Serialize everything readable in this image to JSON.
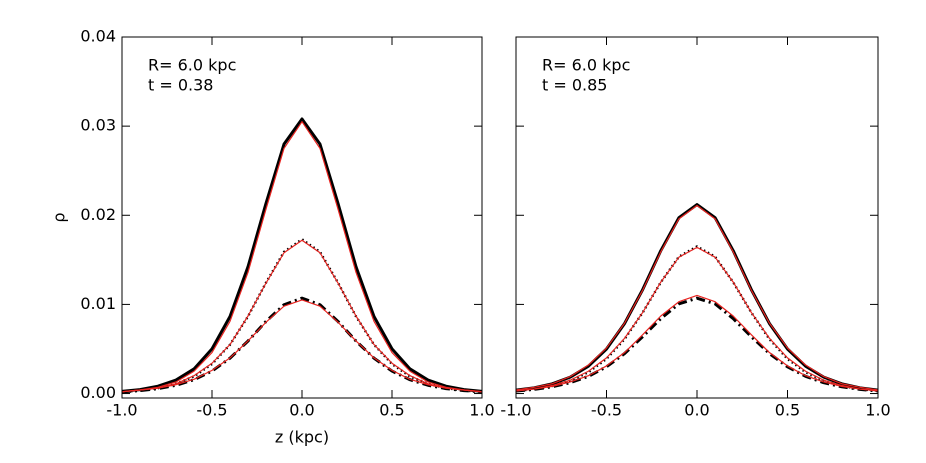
{
  "chart_data": [
    {
      "type": "line",
      "annotations": [
        "R= 6.0 kpc",
        "t = 0.38"
      ],
      "xlabel": "z (kpc)",
      "ylabel": "ρ",
      "x": [
        -1.0,
        -0.9,
        -0.8,
        -0.7,
        -0.6,
        -0.5,
        -0.4,
        -0.3,
        -0.2,
        -0.1,
        0.0,
        0.1,
        0.2,
        0.3,
        0.4,
        0.5,
        0.6,
        0.7,
        0.8,
        0.9,
        1.0
      ],
      "xlim": [
        -1,
        1
      ],
      "xticks": [
        {
          "value": -1,
          "label": "-1.0"
        },
        -0.5,
        {
          "value": 0,
          "label": "0.0"
        },
        0.5,
        {
          "value": 1,
          "label": "1.0"
        }
      ],
      "ylim": [
        -0.0005,
        0.04
      ],
      "yticks": [
        {
          "value": 0,
          "label": "0.00"
        },
        0.01,
        0.02,
        0.03,
        0.04
      ],
      "ytick_labels": true,
      "series": [
        {
          "color": "#000000",
          "style": "solid",
          "values": [
            0.00024,
            0.00044,
            0.00082,
            0.00151,
            0.00276,
            0.00501,
            0.00864,
            0.01422,
            0.02133,
            0.02798,
            0.0308,
            0.02798,
            0.02133,
            0.01422,
            0.00864,
            0.00501,
            0.00276,
            0.00151,
            0.00082,
            0.00044,
            0.00024
          ]
        },
        {
          "color": "#000000",
          "style": "dotted",
          "values": [
            0.00019,
            0.00034,
            0.00061,
            0.00109,
            0.00192,
            0.00331,
            0.00549,
            0.00865,
            0.01244,
            0.01589,
            0.0173,
            0.01589,
            0.01244,
            0.00865,
            0.00549,
            0.00331,
            0.00192,
            0.00109,
            0.00061,
            0.00034,
            0.00019
          ]
        },
        {
          "color": "#000000",
          "style": "dashdot",
          "values": [
            0.00019,
            0.00033,
            0.00055,
            0.00093,
            0.00155,
            0.00252,
            0.00397,
            0.00589,
            0.00809,
            0.00996,
            0.0107,
            0.00996,
            0.00809,
            0.00589,
            0.00397,
            0.00252,
            0.00155,
            0.00093,
            0.00055,
            0.00033,
            0.00019
          ]
        },
        {
          "color": "#e8231f",
          "style": "thin",
          "values": [
            0.0002,
            0.0004,
            0.0007,
            0.0013,
            0.0025,
            0.0046,
            0.0081,
            0.0136,
            0.0207,
            0.0275,
            0.0305,
            0.0275,
            0.0207,
            0.0136,
            0.0081,
            0.0046,
            0.0025,
            0.0013,
            0.0007,
            0.0004,
            0.0002
          ]
        },
        {
          "color": "#e8231f",
          "style": "thin",
          "values": [
            0.0002,
            0.0004,
            0.0006,
            0.0011,
            0.002,
            0.0034,
            0.0055,
            0.0087,
            0.0124,
            0.0158,
            0.0172,
            0.0158,
            0.0124,
            0.0087,
            0.0055,
            0.0034,
            0.002,
            0.0011,
            0.0006,
            0.0004,
            0.0002
          ]
        },
        {
          "color": "#e8231f",
          "style": "thin",
          "values": [
            0.0002,
            0.0004,
            0.0006,
            0.001,
            0.0016,
            0.0026,
            0.004,
            0.0059,
            0.008,
            0.0098,
            0.0105,
            0.0098,
            0.008,
            0.0059,
            0.004,
            0.0026,
            0.0016,
            0.001,
            0.0006,
            0.0004,
            0.0002
          ]
        }
      ]
    },
    {
      "type": "line",
      "annotations": [
        "R= 6.0 kpc",
        "t = 0.85"
      ],
      "x": [
        -1.0,
        -0.9,
        -0.8,
        -0.7,
        -0.6,
        -0.5,
        -0.4,
        -0.3,
        -0.2,
        -0.1,
        0.0,
        0.1,
        0.2,
        0.3,
        0.4,
        0.5,
        0.6,
        0.7,
        0.8,
        0.9,
        1.0
      ],
      "xlim": [
        -1,
        1
      ],
      "xticks": [
        {
          "value": -1,
          "label": "-1.0"
        },
        -0.5,
        {
          "value": 0,
          "label": "0.0"
        },
        0.5,
        {
          "value": 1,
          "label": "1.0"
        }
      ],
      "ylim": [
        -0.0005,
        0.04
      ],
      "yticks": [
        0,
        0.01,
        0.02,
        0.03,
        0.04
      ],
      "ytick_labels": false,
      "series": [
        {
          "color": "#000000",
          "style": "solid",
          "values": [
            0.00038,
            0.00064,
            0.00109,
            0.00184,
            0.00307,
            0.005,
            0.00786,
            0.01167,
            0.01603,
            0.01973,
            0.0212,
            0.01973,
            0.01603,
            0.01167,
            0.00786,
            0.005,
            0.00307,
            0.00184,
            0.00109,
            0.00064,
            0.00038
          ]
        },
        {
          "color": "#000000",
          "style": "dotted",
          "values": [
            0.00029,
            0.0005,
            0.00085,
            0.00144,
            0.00239,
            0.00389,
            0.00611,
            0.00909,
            0.01248,
            0.01535,
            0.0165,
            0.01535,
            0.01248,
            0.00909,
            0.00611,
            0.00389,
            0.00239,
            0.00144,
            0.00085,
            0.0005,
            0.00029
          ]
        },
        {
          "color": "#000000",
          "style": "dashdot",
          "values": [
            0.00028,
            0.00047,
            0.00076,
            0.00122,
            0.00193,
            0.003,
            0.00449,
            0.00638,
            0.00841,
            0.01006,
            0.0107,
            0.01006,
            0.00841,
            0.00638,
            0.00449,
            0.003,
            0.00193,
            0.00122,
            0.00076,
            0.00047,
            0.00028
          ]
        },
        {
          "color": "#e8231f",
          "style": "thin",
          "values": [
            0.0004,
            0.0007,
            0.0011,
            0.0019,
            0.0032,
            0.0051,
            0.0079,
            0.0116,
            0.0159,
            0.0196,
            0.0211,
            0.0196,
            0.0159,
            0.0116,
            0.0079,
            0.0051,
            0.0032,
            0.0019,
            0.0011,
            0.0007,
            0.0004
          ]
        },
        {
          "color": "#e8231f",
          "style": "thin",
          "values": [
            0.0003,
            0.0005,
            0.0009,
            0.0015,
            0.0025,
            0.004,
            0.0062,
            0.0091,
            0.0125,
            0.0153,
            0.0164,
            0.0153,
            0.0125,
            0.0091,
            0.0062,
            0.004,
            0.0025,
            0.0015,
            0.0009,
            0.0005,
            0.0003
          ]
        },
        {
          "color": "#e8231f",
          "style": "thin",
          "values": [
            0.0003,
            0.0005,
            0.0008,
            0.0013,
            0.002,
            0.0031,
            0.0046,
            0.0066,
            0.0087,
            0.0103,
            0.011,
            0.0103,
            0.0087,
            0.0066,
            0.0046,
            0.0031,
            0.002,
            0.0013,
            0.0008,
            0.0005,
            0.0003
          ]
        }
      ]
    }
  ]
}
